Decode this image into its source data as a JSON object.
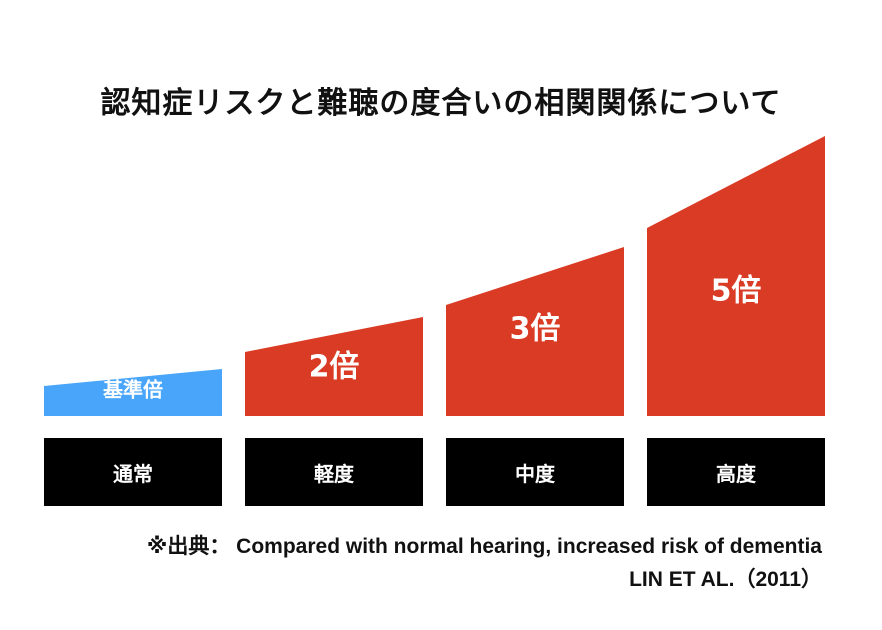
{
  "title": "認知症リスクと難聴の度合いの相関関係について",
  "colors": {
    "baseline": "#49a5fa",
    "risk": "#da3b25",
    "category_bg": "#000000",
    "category_text": "#ffffff",
    "value_label": "#ffffff"
  },
  "chart_data": {
    "type": "bar",
    "categories": [
      "通常",
      "軽度",
      "中度",
      "高度"
    ],
    "values": [
      1,
      2,
      3,
      5
    ],
    "value_labels": [
      "基準倍",
      "2倍",
      "3倍",
      "5倍"
    ],
    "series_colors": [
      "#49a5fa",
      "#da3b25",
      "#da3b25",
      "#da3b25"
    ],
    "title": "認知症リスクと難聴の度合いの相関関係について",
    "xlabel": "",
    "ylabel": "",
    "grid": false,
    "legend": "none"
  },
  "source": {
    "line1": "※出典： Compared with normal hearing, increased risk of dementia",
    "line2": "LIN ET AL.（2011）"
  }
}
